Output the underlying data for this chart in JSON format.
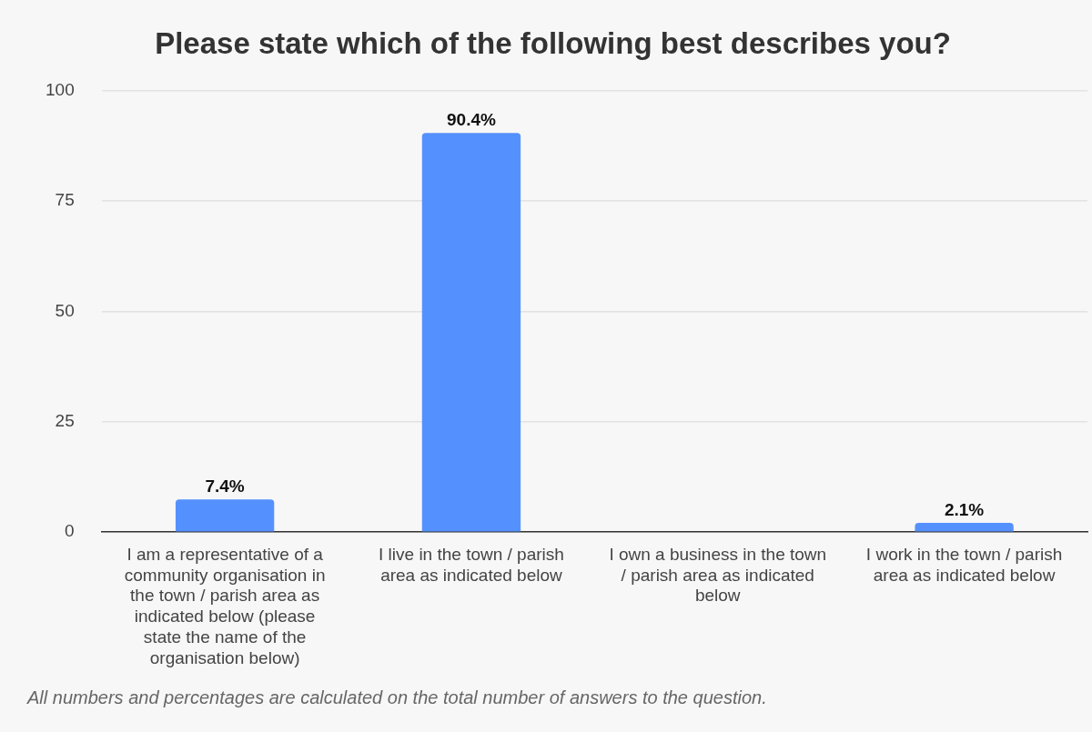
{
  "chart_data": {
    "type": "bar",
    "title": "Please state which of the following best describes you?",
    "categories": [
      "I am a representative of a community organisation in the town / parish area as indicated below (please state the name of the organisation below)",
      "I live in the town / parish area as indicated below",
      "I own a business in the town / parish area as indicated below",
      "I work in the town / parish area as indicated below"
    ],
    "values": [
      7.4,
      90.4,
      0,
      2.1
    ],
    "value_labels": [
      "7.4%",
      "90.4%",
      null,
      "2.1%"
    ],
    "color": "#5591fe",
    "ylim": [
      0,
      100
    ],
    "yticks": [
      0,
      25,
      50,
      75,
      100
    ],
    "grid": "y",
    "legend": false,
    "annotations": [
      "All numbers and percentages are calculated on the total number of answers to the question."
    ]
  }
}
